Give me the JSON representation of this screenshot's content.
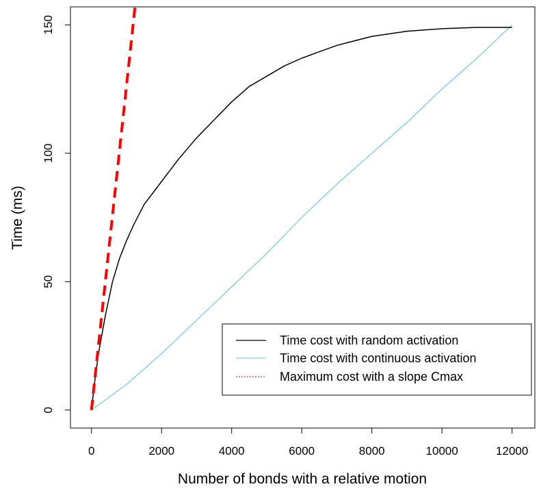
{
  "chart_data": {
    "type": "line",
    "xlabel": "Number of bonds with a relative motion",
    "ylabel": "Time (ms)",
    "xlim": [
      -600,
      12650
    ],
    "ylim": [
      -7,
      157
    ],
    "x_ticks": [
      0,
      2000,
      4000,
      6000,
      8000,
      10000,
      12000
    ],
    "y_ticks": [
      0,
      50,
      100,
      150
    ],
    "grid": false,
    "legend_position": "bottom-right",
    "series": [
      {
        "name": "Time cost with random activation",
        "color": "#000000",
        "style": "solid",
        "x": [
          0,
          100,
          200,
          400,
          600,
          800,
          1000,
          1200,
          1500,
          2000,
          2500,
          3000,
          3500,
          4000,
          4500,
          5000,
          5500,
          6000,
          6500,
          7000,
          8000,
          9000,
          10000,
          11000,
          12000
        ],
        "y": [
          0,
          12,
          22,
          37,
          50,
          59,
          66,
          72,
          80,
          89,
          98,
          106,
          113,
          120,
          126,
          130,
          134,
          137,
          139.5,
          142,
          145.5,
          147.5,
          148.5,
          149,
          149
        ]
      },
      {
        "name": "Time cost with continuous activation",
        "color": "#87ceeb",
        "style": "solid",
        "x": [
          0,
          1000,
          2000,
          3000,
          4000,
          5000,
          6000,
          7000,
          8000,
          9000,
          10000,
          11000,
          12000
        ],
        "y": [
          0,
          10,
          22,
          35,
          48,
          61,
          75,
          88,
          100,
          112,
          125,
          137,
          150
        ]
      },
      {
        "name": "Maximum cost with a slope Cmax",
        "color": "#ff0000",
        "style": "dashed",
        "x": [
          0,
          1250
        ],
        "y": [
          0,
          158
        ]
      }
    ]
  }
}
